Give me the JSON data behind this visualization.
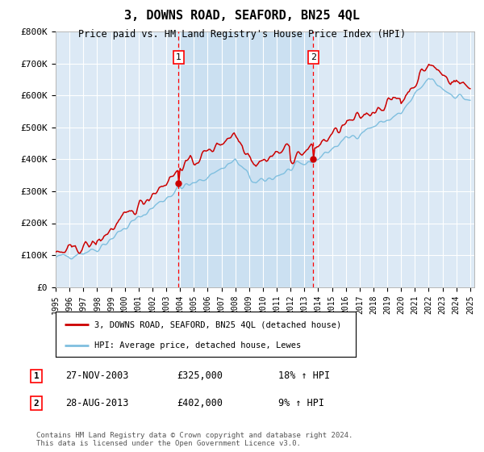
{
  "title": "3, DOWNS ROAD, SEAFORD, BN25 4QL",
  "subtitle": "Price paid vs. HM Land Registry's House Price Index (HPI)",
  "plot_bg_color": "#dce9f5",
  "ylim": [
    0,
    800000
  ],
  "yticks": [
    0,
    100000,
    200000,
    300000,
    400000,
    500000,
    600000,
    700000,
    800000
  ],
  "ytick_labels": [
    "£0",
    "£100K",
    "£200K",
    "£300K",
    "£400K",
    "£500K",
    "£600K",
    "£700K",
    "£800K"
  ],
  "xstart_year": 1995,
  "xend_year": 2025,
  "hpi_color": "#7fbfdf",
  "price_color": "#cc0000",
  "marker1_year": 2003.9,
  "marker1_price": 325000,
  "marker2_year": 2013.65,
  "marker2_price": 402000,
  "shade_color": "#c5ddf0",
  "legend_label_red": "3, DOWNS ROAD, SEAFORD, BN25 4QL (detached house)",
  "legend_label_blue": "HPI: Average price, detached house, Lewes",
  "note1_date": "27-NOV-2003",
  "note1_price": "£325,000",
  "note1_hpi": "18% ↑ HPI",
  "note2_date": "28-AUG-2013",
  "note2_price": "£402,000",
  "note2_hpi": "9% ↑ HPI",
  "footer": "Contains HM Land Registry data © Crown copyright and database right 2024.\nThis data is licensed under the Open Government Licence v3.0."
}
